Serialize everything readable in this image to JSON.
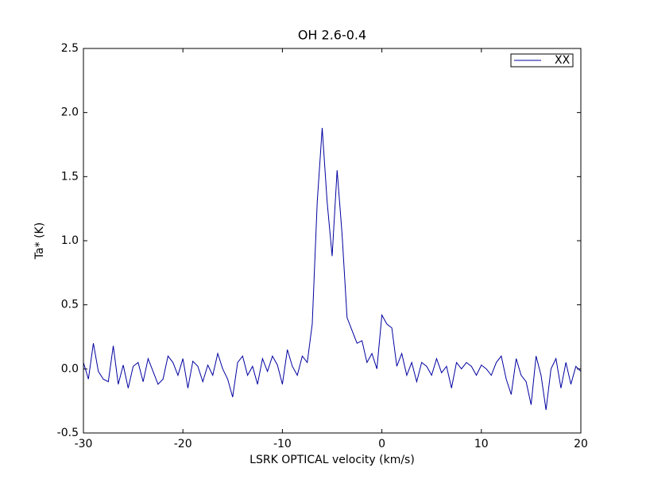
{
  "chart_data": {
    "type": "line",
    "title": "OH 2.6-0.4",
    "xlabel": "LSRK OPTICAL velocity (km/s)",
    "ylabel": "Ta* (K)",
    "x": [
      -30,
      -29.5,
      -29,
      -28.5,
      -28,
      -27.5,
      -27,
      -26.5,
      -26,
      -25.5,
      -25,
      -24.5,
      -24,
      -23.5,
      -23,
      -22.5,
      -22,
      -21.5,
      -21,
      -20.5,
      -20,
      -19.5,
      -19,
      -18.5,
      -18,
      -17.5,
      -17,
      -16.5,
      -16,
      -15.5,
      -15,
      -14.5,
      -14,
      -13.5,
      -13,
      -12.5,
      -12,
      -11.5,
      -11,
      -10.5,
      -10,
      -9.5,
      -9,
      -8.5,
      -8,
      -7.5,
      -7,
      -6.5,
      -6,
      -5.5,
      -5,
      -4.5,
      -4,
      -3.5,
      -3,
      -2.5,
      -2,
      -1.5,
      -1,
      -0.5,
      0,
      0.5,
      1,
      1.5,
      2,
      2.5,
      3,
      3.5,
      4,
      4.5,
      5,
      5.5,
      6,
      6.5,
      7,
      7.5,
      8,
      8.5,
      9,
      9.5,
      10,
      10.5,
      11,
      11.5,
      12,
      12.5,
      13,
      13.5,
      14,
      14.5,
      15,
      15.5,
      16,
      16.5,
      17,
      17.5,
      18,
      18.5,
      19,
      19.5,
      20
    ],
    "series": [
      {
        "name": "XX",
        "color": "#0000a0",
        "values": [
          0.05,
          -0.08,
          0.2,
          -0.02,
          -0.08,
          -0.1,
          0.18,
          -0.12,
          0.03,
          -0.15,
          0.02,
          0.05,
          -0.1,
          0.08,
          -0.02,
          -0.12,
          -0.08,
          0.1,
          0.05,
          -0.05,
          0.08,
          -0.15,
          0.06,
          0.02,
          -0.1,
          0.03,
          -0.05,
          0.12,
          0.0,
          -0.08,
          -0.22,
          0.05,
          0.1,
          -0.05,
          0.02,
          -0.12,
          0.08,
          -0.02,
          0.1,
          0.03,
          -0.12,
          0.15,
          0.02,
          -0.05,
          0.1,
          0.05,
          0.35,
          1.3,
          1.88,
          1.3,
          0.88,
          1.55,
          1.05,
          0.4,
          0.3,
          0.2,
          0.22,
          0.05,
          0.12,
          0.0,
          0.42,
          0.35,
          0.32,
          0.02,
          0.12,
          -0.05,
          0.05,
          -0.1,
          0.05,
          0.02,
          -0.05,
          0.08,
          -0.03,
          0.02,
          -0.15,
          0.05,
          0.0,
          0.05,
          0.02,
          -0.05,
          0.03,
          0.0,
          -0.05,
          0.05,
          0.1,
          -0.08,
          -0.2,
          0.08,
          -0.05,
          -0.1,
          -0.28,
          0.1,
          -0.05,
          -0.32,
          0.0,
          0.08,
          -0.15,
          0.05,
          -0.12,
          0.02,
          -0.02
        ]
      }
    ],
    "xlim": [
      -30,
      20
    ],
    "xticks": [
      -30,
      -20,
      -10,
      0,
      10,
      20
    ],
    "ylim": [
      -0.5,
      2.5
    ],
    "yticks": [
      -0.5,
      {
        "value": 0,
        "label": "0.0"
      },
      0.5,
      {
        "value": 1,
        "label": "1.0"
      },
      1.5,
      {
        "value": 2,
        "label": "2.0"
      },
      2.5
    ],
    "legend": "upper right",
    "grid": false
  }
}
